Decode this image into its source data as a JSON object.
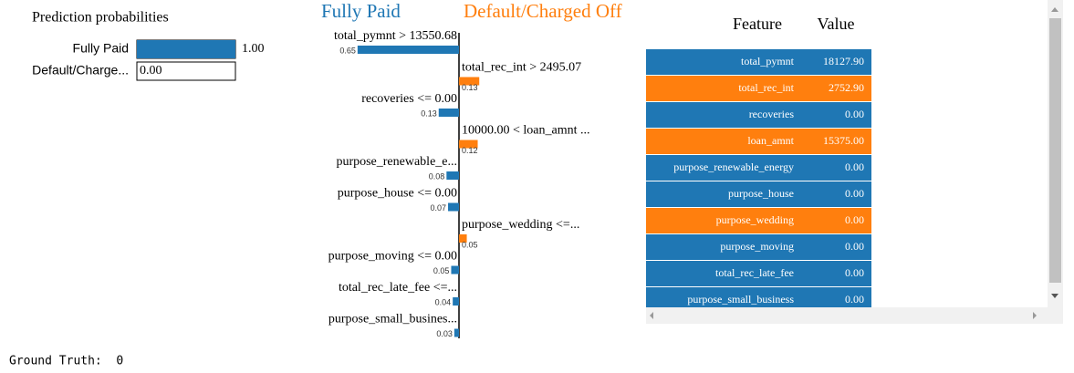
{
  "prediction": {
    "title": "Prediction probabilities",
    "classes": [
      {
        "name": "Fully Paid",
        "value": 1,
        "label": "1.00",
        "color": "#1f77b4"
      },
      {
        "name": "Default/Charge...",
        "value": 0,
        "label": "0.00",
        "color": "#ff7f0e"
      }
    ]
  },
  "explanation": {
    "left_title": "Fully Paid",
    "right_title": "Default/Charged Off",
    "left_color": "#1f77b4",
    "right_color": "#ff7f0e",
    "features": [
      {
        "label": "total_pymnt > 13550.68",
        "weight": 0.65,
        "side": "left"
      },
      {
        "label": "total_rec_int > 2495.07",
        "weight": 0.13,
        "side": "right"
      },
      {
        "label": "recoveries <= 0.00",
        "weight": 0.13,
        "side": "left"
      },
      {
        "label": "10000.00 < loan_amnt ...",
        "weight": 0.12,
        "side": "right"
      },
      {
        "label": "purpose_renewable_e...",
        "weight": 0.08,
        "side": "left"
      },
      {
        "label": "purpose_house <= 0.00",
        "weight": 0.07,
        "side": "left"
      },
      {
        "label": "purpose_wedding <=...",
        "weight": 0.05,
        "side": "right"
      },
      {
        "label": "purpose_moving <= 0.00",
        "weight": 0.05,
        "side": "left"
      },
      {
        "label": "total_rec_late_fee <=...",
        "weight": 0.04,
        "side": "left"
      },
      {
        "label": "purpose_small_busines...",
        "weight": 0.03,
        "side": "left"
      }
    ]
  },
  "table": {
    "headers": [
      "Feature",
      "Value"
    ],
    "rows": [
      {
        "cells": [
          "total_pymnt",
          "18127.90"
        ],
        "color": "#1f77b4"
      },
      {
        "cells": [
          "total_rec_int",
          "2752.90"
        ],
        "color": "#ff7f0e"
      },
      {
        "cells": [
          "recoveries",
          "0.00"
        ],
        "color": "#1f77b4"
      },
      {
        "cells": [
          "loan_amnt",
          "15375.00"
        ],
        "color": "#ff7f0e"
      },
      {
        "cells": [
          "purpose_renewable_energy",
          "0.00"
        ],
        "color": "#1f77b4"
      },
      {
        "cells": [
          "purpose_house",
          "0.00"
        ],
        "color": "#1f77b4"
      },
      {
        "cells": [
          "purpose_wedding",
          "0.00"
        ],
        "color": "#ff7f0e"
      },
      {
        "cells": [
          "purpose_moving",
          "0.00"
        ],
        "color": "#1f77b4"
      },
      {
        "cells": [
          "total_rec_late_fee",
          "0.00"
        ],
        "color": "#1f77b4"
      },
      {
        "cells": [
          "purpose_small_business",
          "0.00"
        ],
        "color": "#1f77b4"
      }
    ]
  },
  "footer": "Ground Truth:  0"
}
